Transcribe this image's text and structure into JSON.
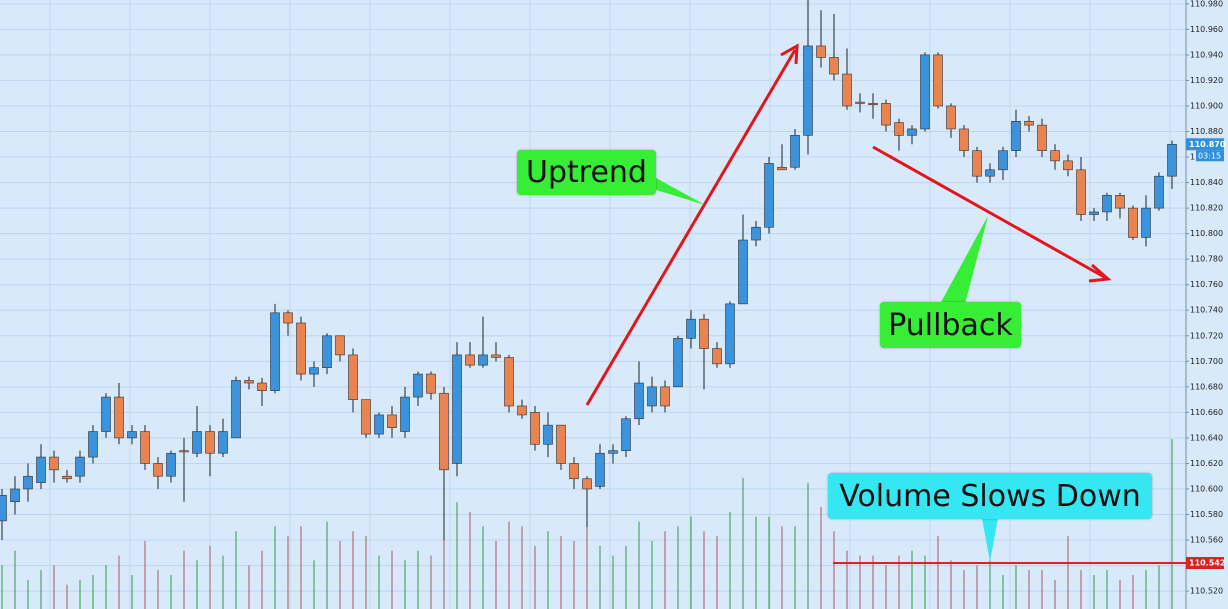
{
  "chart_data": {
    "type": "candlestick",
    "up_color": "#3a93dc",
    "down_color": "#e9834f",
    "volume_up_color": "#2e9a3c",
    "volume_down_color": "#a8575b",
    "grid": true,
    "ylim": [
      110.506,
      110.983
    ],
    "yticks": [
      {
        "value": 110.52,
        "label": "110.520"
      },
      {
        "value": 110.54,
        "label": "110.540"
      },
      {
        "value": 110.56,
        "label": "110.560"
      },
      {
        "value": 110.58,
        "label": "110.580"
      },
      {
        "value": 110.6,
        "label": "110.600"
      },
      {
        "value": 110.62,
        "label": "110.620"
      },
      {
        "value": 110.64,
        "label": "110.640"
      },
      {
        "value": 110.66,
        "label": "110.660"
      },
      {
        "value": 110.68,
        "label": "110.680"
      },
      {
        "value": 110.7,
        "label": "110.700"
      },
      {
        "value": 110.72,
        "label": "110.720"
      },
      {
        "value": 110.74,
        "label": "110.740"
      },
      {
        "value": 110.76,
        "label": "110.760"
      },
      {
        "value": 110.78,
        "label": "110.780"
      },
      {
        "value": 110.8,
        "label": "110.800"
      },
      {
        "value": 110.82,
        "label": "110.820"
      },
      {
        "value": 110.84,
        "label": "110.840"
      },
      {
        "value": 110.86,
        "label": "110.860"
      },
      {
        "value": 110.88,
        "label": "110.880"
      },
      {
        "value": 110.9,
        "label": "110.900"
      },
      {
        "value": 110.92,
        "label": "110.920"
      },
      {
        "value": 110.94,
        "label": "110.940"
      },
      {
        "value": 110.96,
        "label": "110.960"
      },
      {
        "value": 110.98,
        "label": "110.980"
      }
    ],
    "open": [
      110.575,
      110.59,
      110.6,
      110.605,
      110.625,
      110.61,
      110.61,
      110.625,
      110.645,
      110.672,
      110.64,
      110.645,
      110.62,
      110.61,
      110.63,
      110.628,
      110.645,
      110.628,
      110.64,
      110.685,
      110.683,
      110.677,
      110.738,
      110.73,
      110.69,
      110.695,
      110.72,
      110.705,
      110.67,
      110.643,
      110.658,
      110.645,
      110.672,
      110.69,
      110.675,
      110.62,
      110.705,
      110.697,
      110.705,
      110.703,
      110.665,
      110.66,
      110.635,
      110.65,
      110.62,
      110.608,
      110.602,
      110.628,
      110.63,
      110.655,
      110.665,
      110.68,
      110.68,
      110.718,
      110.733,
      110.71,
      110.698,
      110.745,
      110.795,
      110.805,
      110.852,
      110.852,
      110.877,
      110.947,
      110.938,
      110.925,
      110.903,
      110.902,
      110.902,
      110.887,
      110.877,
      110.882,
      110.94,
      110.9,
      110.882,
      110.865,
      110.845,
      110.85,
      110.865,
      110.888,
      110.885,
      110.865,
      110.857,
      110.85,
      110.815,
      110.817,
      110.83,
      110.82,
      110.797,
      110.82,
      110.845
    ],
    "high": [
      110.6,
      110.61,
      110.62,
      110.635,
      110.63,
      110.615,
      110.63,
      110.65,
      110.675,
      110.683,
      110.65,
      110.65,
      110.625,
      110.63,
      110.64,
      110.665,
      110.65,
      110.655,
      110.688,
      110.688,
      110.687,
      110.745,
      110.74,
      110.735,
      110.7,
      110.722,
      110.72,
      110.71,
      110.67,
      110.66,
      110.665,
      110.68,
      110.692,
      110.692,
      110.68,
      110.715,
      110.715,
      110.735,
      110.715,
      110.705,
      110.67,
      110.665,
      110.66,
      110.65,
      110.625,
      110.61,
      110.635,
      110.635,
      110.657,
      110.7,
      110.688,
      110.685,
      110.72,
      110.74,
      110.737,
      110.715,
      110.747,
      110.815,
      110.81,
      110.86,
      110.87,
      110.882,
      110.985,
      110.975,
      110.972,
      110.945,
      110.91,
      110.91,
      110.905,
      110.89,
      110.885,
      110.942,
      110.942,
      110.902,
      110.885,
      110.868,
      110.855,
      110.868,
      110.897,
      110.892,
      110.89,
      110.87,
      110.862,
      110.86,
      110.82,
      110.832,
      110.832,
      110.822,
      110.83,
      110.848,
      110.873
    ],
    "low": [
      110.56,
      110.58,
      110.59,
      110.6,
      110.605,
      110.605,
      110.605,
      110.62,
      110.64,
      110.635,
      110.635,
      110.615,
      110.6,
      110.605,
      110.59,
      110.625,
      110.61,
      110.625,
      110.64,
      110.678,
      110.665,
      110.675,
      110.72,
      110.685,
      110.68,
      110.69,
      110.7,
      110.66,
      110.64,
      110.64,
      110.64,
      110.64,
      110.665,
      110.67,
      110.56,
      110.61,
      110.695,
      110.695,
      110.7,
      110.66,
      110.655,
      110.63,
      110.625,
      110.615,
      110.6,
      110.57,
      110.6,
      110.62,
      110.625,
      110.65,
      110.66,
      110.66,
      110.68,
      110.71,
      110.678,
      110.695,
      110.695,
      110.745,
      110.79,
      110.8,
      110.85,
      110.85,
      110.862,
      110.93,
      110.92,
      110.897,
      110.895,
      110.89,
      110.88,
      110.865,
      110.87,
      110.88,
      110.898,
      110.875,
      110.86,
      110.84,
      110.84,
      110.842,
      110.86,
      110.88,
      110.86,
      110.85,
      110.845,
      110.81,
      110.81,
      110.81,
      110.812,
      110.795,
      110.79,
      110.818,
      110.835
    ],
    "close": [
      110.595,
      110.6,
      110.61,
      110.625,
      110.615,
      110.608,
      110.625,
      110.645,
      110.672,
      110.64,
      110.645,
      110.62,
      110.61,
      110.628,
      110.629,
      110.645,
      110.628,
      110.645,
      110.685,
      110.683,
      110.677,
      110.738,
      110.73,
      110.69,
      110.695,
      110.72,
      110.705,
      110.67,
      110.643,
      110.658,
      110.648,
      110.672,
      110.69,
      110.675,
      110.615,
      110.705,
      110.697,
      110.705,
      110.703,
      110.665,
      110.658,
      110.635,
      110.65,
      110.62,
      110.608,
      110.6,
      110.628,
      110.63,
      110.655,
      110.683,
      110.68,
      110.665,
      110.718,
      110.733,
      110.71,
      110.698,
      110.745,
      110.795,
      110.805,
      110.855,
      110.85,
      110.877,
      110.947,
      110.938,
      110.925,
      110.9,
      110.902,
      110.901,
      110.885,
      110.877,
      110.882,
      110.94,
      110.9,
      110.882,
      110.865,
      110.845,
      110.85,
      110.865,
      110.888,
      110.885,
      110.865,
      110.857,
      110.85,
      110.815,
      110.817,
      110.83,
      110.82,
      110.797,
      110.82,
      110.845,
      110.87
    ],
    "volume": [
      45,
      60,
      30,
      40,
      45,
      25,
      30,
      35,
      45,
      55,
      35,
      70,
      40,
      35,
      60,
      50,
      65,
      55,
      80,
      45,
      60,
      85,
      75,
      85,
      50,
      90,
      70,
      80,
      75,
      55,
      60,
      50,
      60,
      55,
      75,
      110,
      100,
      85,
      70,
      90,
      85,
      65,
      80,
      75,
      70,
      85,
      65,
      55,
      65,
      90,
      70,
      80,
      85,
      95,
      80,
      75,
      100,
      135,
      95,
      95,
      85,
      85,
      130,
      105,
      80,
      60,
      55,
      55,
      45,
      55,
      60,
      55,
      75,
      50,
      40,
      45,
      60,
      35,
      45,
      40,
      40,
      30,
      75,
      40,
      35,
      40,
      30,
      35,
      40,
      45,
      175
    ],
    "hline": {
      "value": 110.542,
      "label": "110.542",
      "color": "#e0201c"
    },
    "last_price": {
      "value": 110.87,
      "label": "110.870",
      "timer": "03:15"
    },
    "annotations": [
      "Uptrend",
      "Pullback",
      "Volume Slows Down"
    ]
  }
}
